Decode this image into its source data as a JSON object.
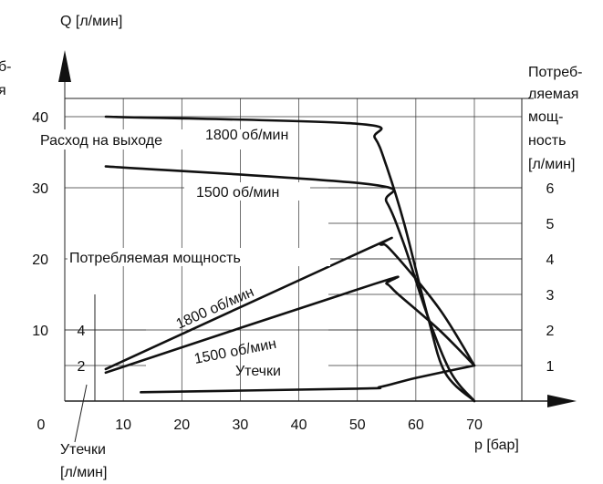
{
  "chart_data": {
    "type": "line",
    "title": "",
    "xlabel": "p [бар]",
    "ylabel_left": "Q [л/мин]",
    "ylabel_right": [
      "Потреб-",
      "ляемая",
      "мощ-",
      "ность",
      "[л/мин]"
    ],
    "leak_axis_label": [
      "Утечки",
      "[л/мин]"
    ],
    "clipped_left_text": [
      "б-",
      "я"
    ],
    "x_ticks": [
      0,
      10,
      20,
      30,
      40,
      50,
      60,
      70
    ],
    "xlim": [
      0,
      70
    ],
    "y_left_ticks": [
      10,
      20,
      30,
      40
    ],
    "ylim": [
      0,
      40
    ],
    "y_right_ticks": [
      1,
      2,
      3,
      4,
      5,
      6
    ],
    "y_right_lim": [
      0,
      6
    ],
    "y_leak_ticks": [
      2,
      4
    ],
    "y_leak_lim": [
      0,
      4
    ],
    "grid": true,
    "annotations": {
      "flow_group": "Расход на выходе",
      "power_group": "Потребляемая мощность",
      "rpm_1800_flow": "1800 об/мин",
      "rpm_1500_flow": "1500 об/мин",
      "rpm_1800_power": "1800 об/мин",
      "rpm_1500_power": "1500 об/мин",
      "leak": "Утечки"
    },
    "series": [
      {
        "name": "Расход на выходе 1800 об/мин",
        "axis": "left",
        "points": [
          [
            7,
            40
          ],
          [
            50,
            39
          ],
          [
            53,
            37
          ],
          [
            55,
            33
          ],
          [
            58,
            25
          ],
          [
            62,
            12
          ],
          [
            65,
            4
          ],
          [
            70,
            0
          ]
        ]
      },
      {
        "name": "Расход на выходе 1500 об/мин",
        "axis": "left",
        "points": [
          [
            7,
            33
          ],
          [
            52,
            30.5
          ],
          [
            55,
            28
          ],
          [
            58,
            22
          ],
          [
            62,
            12
          ],
          [
            66,
            4
          ],
          [
            70,
            0
          ]
        ]
      },
      {
        "name": "Потребляемая мощность 1800 об/мин",
        "axis": "right",
        "points": [
          [
            7,
            0.9
          ],
          [
            52,
            4.3
          ],
          [
            54,
            4.4
          ],
          [
            56,
            4.2
          ],
          [
            64,
            2.6
          ],
          [
            70,
            1.0
          ]
        ]
      },
      {
        "name": "Потребляемая мощность 1500 об/мин",
        "axis": "right",
        "points": [
          [
            7,
            0.8
          ],
          [
            53,
            3.3
          ],
          [
            55,
            3.3
          ],
          [
            57,
            3.0
          ],
          [
            64,
            2.0
          ],
          [
            70,
            1.0
          ]
        ]
      },
      {
        "name": "Утечки",
        "axis": "leak",
        "points": [
          [
            13,
            0.5
          ],
          [
            50,
            0.7
          ],
          [
            54,
            0.8
          ],
          [
            60,
            1.3
          ],
          [
            70,
            2.0
          ]
        ]
      }
    ]
  }
}
